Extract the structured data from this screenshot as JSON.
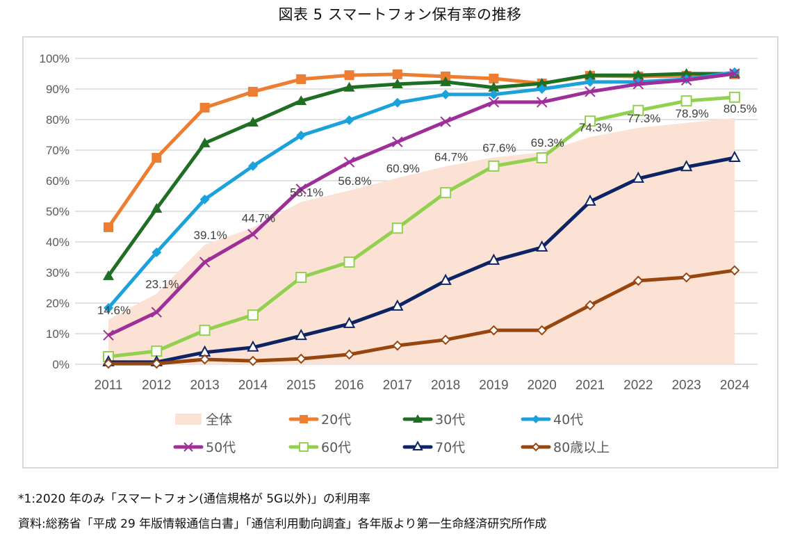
{
  "title": "図表 5 スマートフォン保有率の推移",
  "notes": {
    "footnote": "*1:2020 年のみ「スマートフォン(通信規格が 5G以外)」の利用率",
    "source": "資料:総務省「平成 29 年版情報通信白書」「通信利用動向調査」各年版より第一生命経済研究所作成"
  },
  "chart_data": {
    "type": "line",
    "title": "図表 5 スマートフォン保有率の推移",
    "xlabel": "",
    "ylabel": "",
    "x": [
      "2011",
      "2012",
      "2013",
      "2014",
      "2015",
      "2016",
      "2017",
      "2018",
      "2019",
      "2020",
      "2021",
      "2022",
      "2023",
      "2024"
    ],
    "ylim": [
      0,
      100
    ],
    "yticks": [
      "0%",
      "10%",
      "20%",
      "30%",
      "40%",
      "50%",
      "60%",
      "70%",
      "80%",
      "90%",
      "100%"
    ],
    "grid": true,
    "legend_position": "bottom",
    "area_series": {
      "name": "全体",
      "color": "#fbe2d5",
      "values": [
        14.6,
        23.1,
        39.1,
        44.7,
        53.1,
        56.8,
        60.9,
        64.7,
        67.6,
        69.3,
        74.3,
        77.3,
        78.9,
        80.5
      ],
      "data_labels": [
        "14.6%",
        "23.1%",
        "39.1%",
        "44.7%",
        "53.1%",
        "56.8%",
        "60.9%",
        "64.7%",
        "67.6%",
        "69.3%",
        "74.3%",
        "77.3%",
        "78.9%",
        "80.5%"
      ]
    },
    "series": [
      {
        "name": "20代",
        "color": "#ed7d31",
        "marker": "square-filled",
        "values": [
          44.8,
          67.5,
          83.9,
          89.1,
          93.2,
          94.5,
          94.8,
          94.1,
          93.4,
          91.8,
          94.3,
          94.1,
          94.3,
          94.8
        ]
      },
      {
        "name": "30代",
        "color": "#1e6e23",
        "marker": "triangle-filled",
        "values": [
          28.9,
          50.9,
          72.3,
          79.1,
          86.1,
          90.5,
          91.6,
          92.3,
          90.5,
          91.8,
          94.5,
          94.5,
          95.0,
          95.0
        ]
      },
      {
        "name": "40代",
        "color": "#1ba1dc",
        "marker": "diamond-filled",
        "values": [
          18.4,
          36.6,
          53.9,
          64.8,
          74.8,
          79.8,
          85.5,
          88.2,
          88.2,
          90.0,
          92.3,
          92.3,
          93.2,
          95.5
        ]
      },
      {
        "name": "50代",
        "color": "#9e2f98",
        "marker": "x",
        "values": [
          9.5,
          17.0,
          33.4,
          42.5,
          57.3,
          66.1,
          72.7,
          79.3,
          85.7,
          85.7,
          89.1,
          91.6,
          92.9,
          95.0
        ]
      },
      {
        "name": "60代",
        "color": "#92d050",
        "marker": "square-open",
        "values": [
          2.5,
          4.3,
          11.1,
          16.1,
          28.4,
          33.4,
          44.5,
          56.1,
          64.8,
          67.5,
          79.5,
          83.0,
          86.1,
          87.3
        ]
      },
      {
        "name": "70代",
        "color": "#0c2463",
        "marker": "triangle-open",
        "values": [
          0.7,
          0.7,
          3.9,
          5.5,
          9.3,
          13.2,
          18.9,
          27.3,
          33.9,
          38.2,
          53.2,
          60.7,
          64.5,
          67.5
        ]
      },
      {
        "name": "80歳以上",
        "color": "#974610",
        "marker": "diamond-open",
        "values": [
          0.2,
          0.2,
          1.6,
          1.1,
          1.8,
          3.2,
          6.1,
          8.0,
          11.1,
          11.1,
          19.3,
          27.3,
          28.4,
          30.7
        ]
      }
    ],
    "legend": [
      "全体",
      "20代",
      "30代",
      "40代",
      "50代",
      "60代",
      "70代",
      "80歳以上"
    ]
  }
}
